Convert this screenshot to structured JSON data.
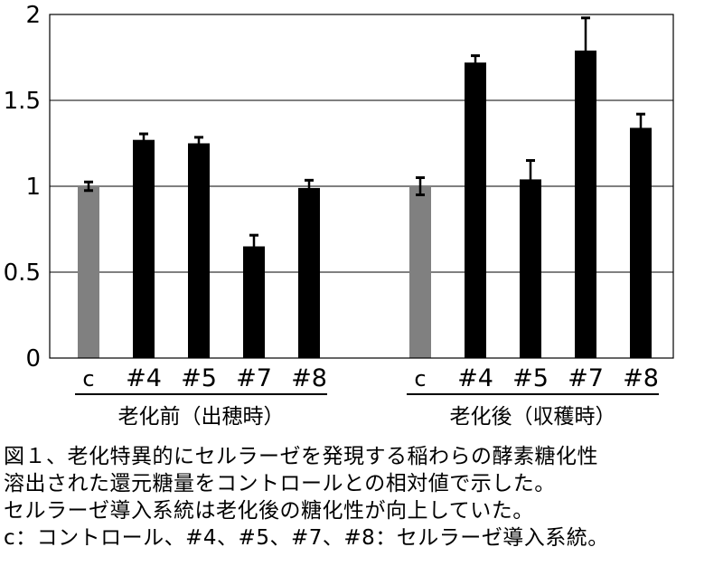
{
  "chart_data": {
    "type": "bar",
    "ylim": [
      0,
      2
    ],
    "yticks": [
      "0",
      "0.5",
      "1",
      "1.5",
      "2"
    ],
    "grid": true,
    "groups": [
      {
        "label": "老化前（出穂時）",
        "categories": [
          "c",
          "#4",
          "#5",
          "#7",
          "#8"
        ],
        "values": [
          1.0,
          1.27,
          1.25,
          0.65,
          0.99
        ],
        "errors": [
          0.025,
          0.035,
          0.035,
          0.065,
          0.045
        ]
      },
      {
        "label": "老化後（収穫時）",
        "categories": [
          "c",
          "#4",
          "#5",
          "#7",
          "#8"
        ],
        "values": [
          1.0,
          1.72,
          1.04,
          1.79,
          1.34
        ],
        "errors": [
          0.05,
          0.04,
          0.11,
          0.19,
          0.08
        ]
      }
    ],
    "colors": {
      "control": "#808080",
      "transgenic": "#000000"
    }
  },
  "caption": {
    "lines": [
      "図１、老化特異的にセルラーゼを発現する稲わらの酵素糖化性",
      "溶出された還元糖量をコントロールとの相対値で示した。",
      "セルラーゼ導入系統は老化後の糖化性が向上していた。",
      "c：コントロール、#4、#5、#7、#8：セルラーゼ導入系統。"
    ]
  }
}
